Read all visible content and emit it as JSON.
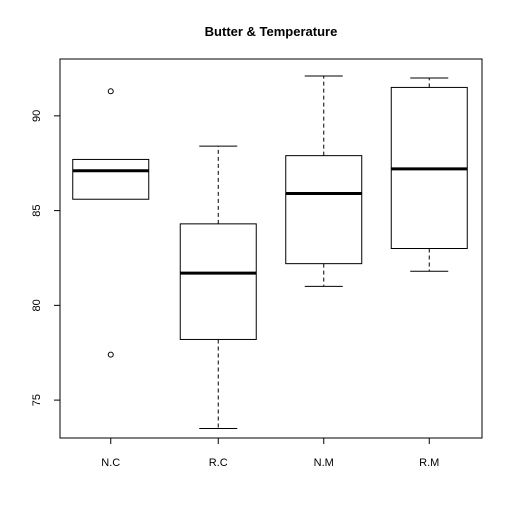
{
  "chart_data": {
    "type": "box",
    "title": "Butter & Temperature",
    "xlabel": "",
    "ylabel": "",
    "ylim": [
      73.0,
      93.0
    ],
    "yticks": [
      75,
      80,
      85,
      90
    ],
    "categories": [
      "N.C",
      "R.C",
      "N.M",
      "R.M"
    ],
    "boxes": [
      {
        "category": "N.C",
        "whisker_low": 85.6,
        "q1": 85.6,
        "median": 87.1,
        "q3": 87.7,
        "whisker_high": 87.7,
        "outliers": [
          91.3,
          77.4
        ]
      },
      {
        "category": "R.C",
        "whisker_low": 73.5,
        "q1": 78.2,
        "median": 81.7,
        "q3": 84.3,
        "whisker_high": 88.4,
        "outliers": []
      },
      {
        "category": "N.M",
        "whisker_low": 81.0,
        "q1": 82.2,
        "median": 85.9,
        "q3": 87.9,
        "whisker_high": 92.1,
        "outliers": []
      },
      {
        "category": "R.M",
        "whisker_low": 81.8,
        "q1": 83.0,
        "median": 87.2,
        "q3": 91.5,
        "whisker_high": 92.0,
        "outliers": []
      }
    ],
    "grid": false,
    "legend": "none"
  }
}
